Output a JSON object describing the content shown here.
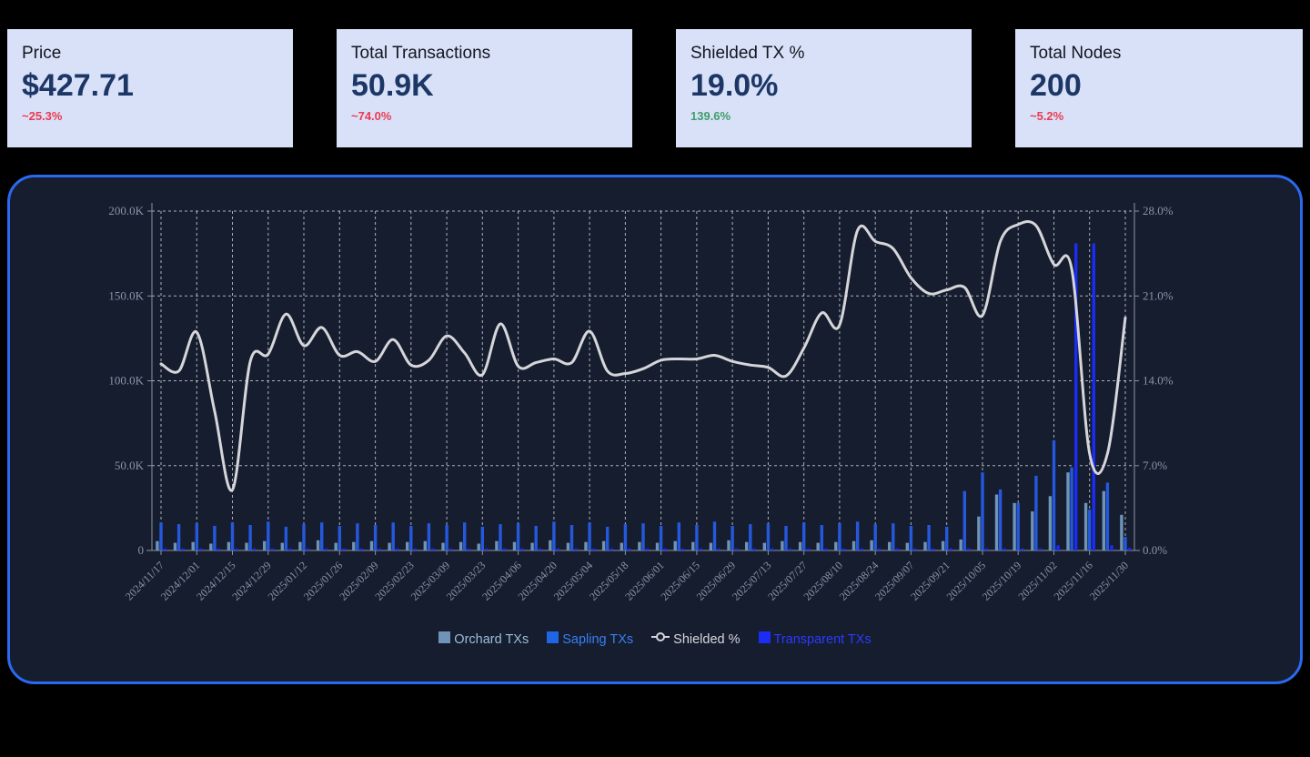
{
  "cards": [
    {
      "title": "Price",
      "value": "$427.71",
      "delta": "~25.3%",
      "delta_color": "#ee3a50"
    },
    {
      "title": "Total Transactions",
      "value": "50.9K",
      "delta": "~74.0%",
      "delta_color": "#ee3a50"
    },
    {
      "title": "Shielded TX %",
      "value": "19.0%",
      "delta": "139.6%",
      "delta_color": "#3f9e68"
    },
    {
      "title": "Total Nodes",
      "value": "200",
      "delta": "~5.2%",
      "delta_color": "#ee3a50"
    }
  ],
  "colors": {
    "page_bg": "#000000",
    "card_bg": "#d8e1f8",
    "panel_bg": "#151d2f",
    "panel_border": "#2b6af0",
    "grid": "rgba(223,227,235,0.75)",
    "axis_label": "#8d93a6"
  },
  "chart_data": {
    "type": "bar+line combo, dual axis",
    "x": [
      "2024/11/17",
      "2024/11/24",
      "2024/12/01",
      "2024/12/08",
      "2024/12/15",
      "2024/12/22",
      "2024/12/29",
      "2025/01/05",
      "2025/01/12",
      "2025/01/19",
      "2025/01/26",
      "2025/02/02",
      "2025/02/09",
      "2025/02/16",
      "2025/02/23",
      "2025/03/02",
      "2025/03/09",
      "2025/03/16",
      "2025/03/23",
      "2025/03/30",
      "2025/04/06",
      "2025/04/13",
      "2025/04/20",
      "2025/04/27",
      "2025/05/04",
      "2025/05/11",
      "2025/05/18",
      "2025/05/25",
      "2025/06/01",
      "2025/06/08",
      "2025/06/15",
      "2025/06/22",
      "2025/06/29",
      "2025/07/06",
      "2025/07/13",
      "2025/07/20",
      "2025/07/27",
      "2025/08/03",
      "2025/08/10",
      "2025/08/17",
      "2025/08/24",
      "2025/08/31",
      "2025/09/07",
      "2025/09/14",
      "2025/09/21",
      "2025/09/28",
      "2025/10/05",
      "2025/10/12",
      "2025/10/19",
      "2025/10/26",
      "2025/11/02",
      "2025/11/09",
      "2025/11/16",
      "2025/11/23",
      "2025/11/30"
    ],
    "x_tick_labels": [
      "2024/11/17",
      "2024/12/01",
      "2024/12/15",
      "2024/12/29",
      "2025/01/12",
      "2025/01/26",
      "2025/02/09",
      "2025/02/23",
      "2025/03/09",
      "2025/03/23",
      "2025/04/06",
      "2025/04/20",
      "2025/05/04",
      "2025/05/18",
      "2025/06/01",
      "2025/06/15",
      "2025/06/29",
      "2025/07/13",
      "2025/07/27",
      "2025/08/10",
      "2025/08/24",
      "2025/09/07",
      "2025/09/21",
      "2025/10/05",
      "2025/10/19",
      "2025/11/02",
      "2025/11/16",
      "2025/11/30"
    ],
    "left_axis": {
      "ticks": [
        "0",
        "50.0K",
        "100.0K",
        "150.0K",
        "200.0K"
      ],
      "max": 200000,
      "min": 0
    },
    "right_axis": {
      "ticks": [
        "0.0%",
        "7.0%",
        "14.0%",
        "21.0%",
        "28.0%"
      ],
      "max": 28,
      "min": 0
    },
    "grid": "dashed, both directions",
    "legend_position": "bottom-center",
    "series": [
      {
        "name": "Orchard TXs",
        "type": "bar",
        "axis": "left",
        "color": "#6f94b8",
        "values": [
          5500,
          4500,
          5000,
          4000,
          5000,
          4500,
          5500,
          4500,
          5000,
          6000,
          4500,
          5000,
          5500,
          4500,
          5000,
          5500,
          4500,
          5000,
          4000,
          5500,
          5000,
          4500,
          6000,
          4500,
          5000,
          5500,
          4500,
          5000,
          4500,
          5500,
          5000,
          4500,
          6000,
          5000,
          4500,
          5500,
          5000,
          4500,
          5000,
          5500,
          6000,
          5000,
          4500,
          5000,
          5500,
          6500,
          20000,
          33000,
          28000,
          23000,
          32000,
          46000,
          28000,
          35000,
          21000
        ]
      },
      {
        "name": "Sapling TXs",
        "type": "bar",
        "axis": "left",
        "color": "#2558dd",
        "values": [
          16500,
          15500,
          16000,
          14500,
          16500,
          15000,
          17000,
          14000,
          15500,
          16500,
          14500,
          16000,
          15000,
          16500,
          14500,
          16000,
          15000,
          16500,
          14000,
          15500,
          16000,
          14500,
          17000,
          15000,
          16500,
          14000,
          15500,
          16000,
          14500,
          16500,
          15000,
          17000,
          14500,
          15500,
          16000,
          14500,
          16500,
          15000,
          16000,
          17000,
          15500,
          16000,
          14500,
          15000,
          14000,
          35000,
          46000,
          36000,
          28000,
          44000,
          65000,
          49000,
          24000,
          40000,
          8000
        ]
      },
      {
        "name": "Transparent TXs",
        "type": "bar",
        "axis": "left",
        "color": "#1b2cf5",
        "values": [
          1200,
          1200,
          1200,
          1200,
          1200,
          1200,
          1200,
          1200,
          1200,
          1200,
          1200,
          1200,
          1200,
          1200,
          1200,
          1200,
          1200,
          1200,
          1200,
          1200,
          1200,
          1200,
          1200,
          1200,
          1200,
          1200,
          1200,
          1200,
          1200,
          1200,
          1200,
          1200,
          1200,
          1200,
          1200,
          1200,
          1200,
          1200,
          1200,
          1200,
          1200,
          1200,
          1200,
          1200,
          1200,
          1200,
          1200,
          1200,
          1200,
          1200,
          3000,
          181000,
          181000,
          3000,
          1500
        ]
      },
      {
        "name": "Shielded %",
        "type": "line",
        "axis": "right",
        "color": "#d6d6da",
        "line_width": 3,
        "smooth": true,
        "values": [
          15.4,
          14.8,
          18.0,
          11.5,
          5.0,
          15.6,
          16.2,
          19.5,
          16.9,
          18.4,
          16.1,
          16.4,
          15.6,
          17.4,
          15.3,
          15.7,
          17.7,
          16.3,
          14.5,
          18.7,
          15.2,
          15.5,
          15.8,
          15.5,
          18.1,
          14.8,
          14.6,
          15.0,
          15.7,
          15.8,
          15.8,
          16.1,
          15.6,
          15.3,
          15.1,
          14.4,
          16.7,
          19.6,
          18.6,
          26.4,
          25.5,
          24.9,
          22.5,
          21.2,
          21.5,
          21.7,
          19.4,
          25.5,
          26.9,
          26.8,
          23.6,
          23.2,
          8.0,
          8.0,
          19.2
        ]
      }
    ],
    "legend": [
      {
        "label": "Orchard TXs",
        "icon": "square",
        "color": "#6f94b8",
        "label_color": "#9dbdda"
      },
      {
        "label": "Sapling TXs",
        "icon": "square",
        "color": "#2066e4",
        "label_color": "#3b7ef2"
      },
      {
        "label": "Shielded %",
        "icon": "line-marker",
        "color": "#d6d6da",
        "label_color": "#d8d8dc"
      },
      {
        "label": "Transparent TXs",
        "icon": "square",
        "color": "#1b2cf5",
        "label_color": "#2b3bff"
      }
    ]
  }
}
